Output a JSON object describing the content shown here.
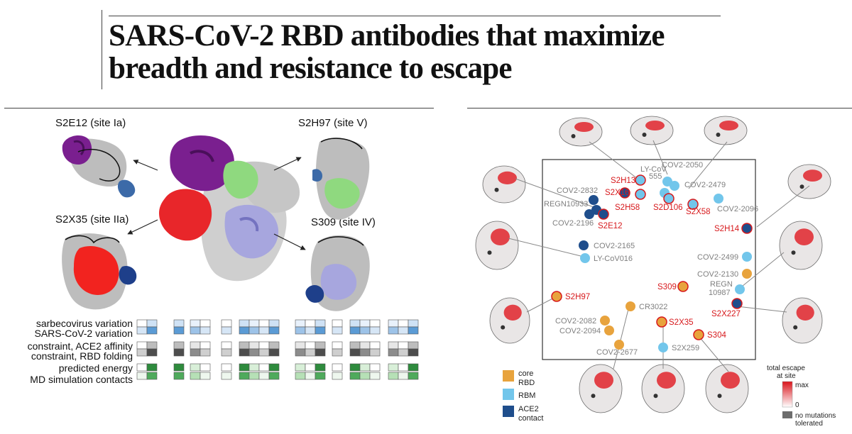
{
  "title_line1": "SARS-CoV-2 RBD antibodies that maximize",
  "title_line2": "breadth and resistance to escape",
  "left": {
    "structure_labels": [
      "S2E12 (site Ia)",
      "S2H97 (site V)",
      "S2X35 (site IIa)",
      "S309 (site IV)"
    ],
    "row_labels": [
      "sarbecovirus variation",
      "SARS-CoV-2 variation",
      "constraint, ACE2 affinity",
      "constraint, RBD folding",
      "predicted energy",
      "MD simulation contacts"
    ]
  },
  "right": {
    "antibodies_red": [
      "S2H13",
      "S2X16",
      "S2H58",
      "S2D106",
      "S2X58",
      "S2E12",
      "S2H14",
      "S309",
      "S2X227",
      "S2H97",
      "S2X35",
      "S304"
    ],
    "antibodies_grey": [
      "LY-CoV",
      "555",
      "COV2-2050",
      "COV2-2479",
      "COV2-2832",
      "REGN10933",
      "COV2-2096",
      "COV2-2196",
      "COV2-2165",
      "LY-CoV016",
      "COV2-2499",
      "COV2-2130",
      "REGN",
      "10987",
      "CR3022",
      "COV2-2082",
      "COV2-2094",
      "COV2-2677",
      "S2X259"
    ],
    "legend_site": {
      "core": "core",
      "rbd": "RBD",
      "rbm": "RBM",
      "ace2": "ACE2",
      "contact": "contact"
    },
    "legend_escape": {
      "title1": "total escape",
      "title2": "at site",
      "max": "max",
      "zero": "0",
      "none1": "no mutations",
      "none2": "tolerated"
    },
    "colors": {
      "core": "#e8a33d",
      "rbm": "#72c6eb",
      "ace2": "#1f4e8c",
      "label_red": "#d7191c"
    }
  }
}
